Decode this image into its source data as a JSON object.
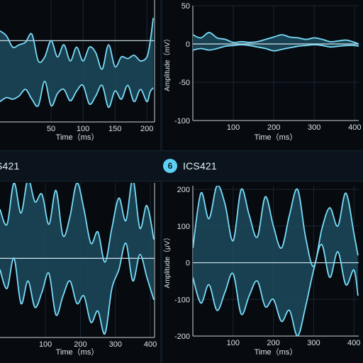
{
  "colors": {
    "background": "#070a0f",
    "header": "#0b141d",
    "trace": "#79dcf9",
    "fill": "#1b4a5c",
    "grid": "#1a2836",
    "zero_line": "#d6e6ee",
    "text": "#d9e4ea"
  },
  "headers": [
    {
      "title": "S421",
      "badge": ""
    },
    {
      "title": "ICS421",
      "badge": "6"
    }
  ],
  "chart_data": [
    {
      "type": "area",
      "title": "",
      "xlabel": "Time（ms）",
      "ylabel": "",
      "xlim": [
        -30,
        212
      ],
      "ylim": [
        -100,
        50
      ],
      "x_ticks": [
        50,
        100,
        150,
        200
      ],
      "y_ticks": [],
      "grid": true,
      "series": [
        {
          "x": [
            -30,
            -20,
            -10,
            0,
            10,
            20,
            30,
            40,
            50,
            60,
            70,
            80,
            90,
            100,
            110,
            120,
            130,
            140,
            150,
            160,
            170,
            180,
            190,
            200,
            205,
            210
          ],
          "values": [
            12,
            6,
            -8,
            -5,
            -2,
            8,
            -25,
            -20,
            0,
            -20,
            -5,
            -25,
            -8,
            -25,
            -8,
            -15,
            -35,
            -5,
            -32,
            -20,
            -22,
            -18,
            -25,
            -20,
            -2,
            28
          ]
        },
        {
          "x": [
            -30,
            -20,
            -10,
            0,
            10,
            20,
            30,
            40,
            50,
            60,
            70,
            80,
            90,
            100,
            110,
            120,
            130,
            140,
            150,
            160,
            170,
            180,
            190,
            200,
            205,
            210
          ],
          "values": [
            -75,
            -70,
            -72,
            -68,
            -60,
            -72,
            -80,
            -50,
            -80,
            -65,
            -60,
            -74,
            -62,
            -55,
            -78,
            -68,
            -55,
            -82,
            -62,
            -72,
            -55,
            -75,
            -60,
            -75,
            -63,
            -58
          ]
        }
      ]
    },
    {
      "type": "area",
      "title": "",
      "xlabel": "Time（ms）",
      "ylabel": "Amplitude（mV）",
      "xlim": [
        0,
        410
      ],
      "ylim": [
        -100,
        50
      ],
      "x_ticks": [
        100,
        200,
        300,
        400
      ],
      "y_ticks": [
        50,
        0,
        -50,
        -100
      ],
      "grid": true,
      "series": [
        {
          "x": [
            0,
            20,
            40,
            60,
            80,
            100,
            120,
            140,
            160,
            180,
            200,
            220,
            240,
            260,
            280,
            300,
            320,
            340,
            360,
            380,
            400,
            410
          ],
          "values": [
            12,
            8,
            15,
            8,
            6,
            2,
            3,
            2,
            3,
            6,
            9,
            12,
            9,
            8,
            6,
            8,
            6,
            3,
            4,
            5,
            2,
            0
          ]
        },
        {
          "x": [
            0,
            20,
            40,
            60,
            80,
            100,
            120,
            140,
            160,
            180,
            200,
            220,
            240,
            260,
            280,
            300,
            320,
            340,
            360,
            380,
            400,
            410
          ],
          "values": [
            -8,
            -6,
            -8,
            -6,
            -3,
            -2,
            -1,
            -2,
            -4,
            -6,
            -9,
            -7,
            -5,
            -3,
            -2,
            -1,
            -2,
            -4,
            -3,
            -2,
            -2,
            -3
          ]
        }
      ]
    },
    {
      "type": "area",
      "title": "",
      "xlabel": "Time（ms）",
      "ylabel": "",
      "xlim": [
        -30,
        412
      ],
      "ylim": [
        -210,
        200
      ],
      "x_ticks": [
        100,
        200,
        300,
        400
      ],
      "y_ticks": [],
      "grid": true,
      "series": [
        {
          "x": [
            -30,
            -10,
            10,
            30,
            50,
            70,
            90,
            110,
            130,
            150,
            170,
            190,
            210,
            230,
            250,
            270,
            290,
            310,
            330,
            350,
            370,
            390,
            410
          ],
          "values": [
            130,
            90,
            200,
            120,
            210,
            150,
            170,
            90,
            180,
            60,
            110,
            200,
            130,
            40,
            70,
            -10,
            80,
            160,
            100,
            210,
            80,
            140,
            50
          ]
        },
        {
          "x": [
            -30,
            -10,
            10,
            30,
            50,
            70,
            90,
            110,
            130,
            150,
            170,
            190,
            210,
            230,
            250,
            270,
            290,
            310,
            330,
            350,
            370,
            390,
            410
          ],
          "values": [
            -30,
            -80,
            0,
            -120,
            -60,
            -130,
            -90,
            -40,
            -150,
            -100,
            -60,
            -120,
            -100,
            -170,
            -140,
            -200,
            -80,
            -30,
            40,
            -60,
            10,
            -50,
            -110
          ]
        }
      ]
    },
    {
      "type": "area",
      "title": "",
      "xlabel": "Time（ms）",
      "ylabel": "Amplitude（μV）",
      "xlim": [
        0,
        412
      ],
      "ylim": [
        -200,
        210
      ],
      "x_ticks": [
        100,
        200,
        300,
        400
      ],
      "y_ticks": [
        200,
        100,
        0,
        -100,
        -200
      ],
      "grid": true,
      "series": [
        {
          "x": [
            0,
            20,
            40,
            60,
            80,
            100,
            120,
            140,
            160,
            180,
            200,
            220,
            240,
            260,
            280,
            300,
            320,
            340,
            360,
            380,
            400,
            410
          ],
          "values": [
            40,
            190,
            120,
            210,
            160,
            60,
            200,
            130,
            70,
            180,
            100,
            40,
            130,
            200,
            70,
            -10,
            90,
            150,
            100,
            190,
            80,
            20
          ]
        },
        {
          "x": [
            0,
            20,
            40,
            60,
            80,
            100,
            120,
            140,
            160,
            180,
            200,
            220,
            240,
            260,
            280,
            300,
            320,
            340,
            360,
            380,
            400,
            410
          ],
          "values": [
            -40,
            -110,
            -60,
            -130,
            -80,
            -30,
            -140,
            -90,
            -50,
            -120,
            -100,
            -160,
            -130,
            -200,
            -120,
            -20,
            50,
            -40,
            30,
            -60,
            -20,
            -90
          ]
        }
      ]
    }
  ]
}
